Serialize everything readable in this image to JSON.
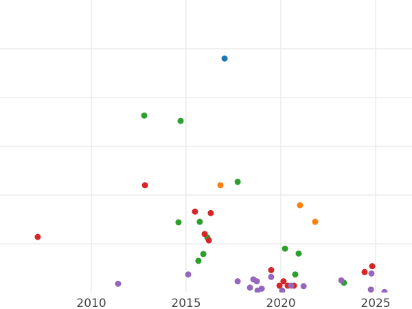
{
  "chart_data": {
    "type": "scatter",
    "title": "",
    "xlabel": "",
    "ylabel": "",
    "xlim": [
      2005.18,
      2026.92
    ],
    "ylim": [
      0,
      6
    ],
    "grid": true,
    "x_ticks": [
      "2010",
      "2015",
      "2020",
      "2025"
    ],
    "x_tick_values": [
      2010,
      2015,
      2020,
      2025
    ],
    "y_gridlines": [
      1,
      2,
      3,
      4,
      5
    ],
    "series": [
      {
        "color": "#1f77b4",
        "points": [
          [
            2017.03,
            4.8
          ]
        ]
      },
      {
        "color": "#2ca02c",
        "points": [
          [
            2012.79,
            3.63
          ],
          [
            2014.71,
            3.52
          ],
          [
            2017.72,
            2.27
          ],
          [
            2014.6,
            1.44
          ],
          [
            2015.72,
            1.45
          ],
          [
            2016.12,
            1.13
          ],
          [
            2015.91,
            0.79
          ],
          [
            2015.65,
            0.65
          ],
          [
            2020.22,
            0.9
          ],
          [
            2020.94,
            0.8
          ],
          [
            2020.76,
            0.37
          ],
          [
            2023.33,
            0.2
          ]
        ]
      },
      {
        "color": "#d62728",
        "points": [
          [
            2007.17,
            1.14
          ],
          [
            2012.83,
            2.2
          ],
          [
            2015.47,
            1.66
          ],
          [
            2016.3,
            1.63
          ],
          [
            2015.98,
            1.2
          ],
          [
            2016.2,
            1.07
          ],
          [
            2019.49,
            0.46
          ],
          [
            2020.14,
            0.23
          ],
          [
            2019.93,
            0.14
          ],
          [
            2020.36,
            0.14
          ],
          [
            2020.69,
            0.14
          ],
          [
            2024.42,
            0.42
          ],
          [
            2024.82,
            0.54
          ]
        ]
      },
      {
        "color": "#ff7f0e",
        "points": [
          [
            2016.81,
            2.2
          ],
          [
            2021.01,
            1.79
          ],
          [
            2021.81,
            1.45
          ]
        ]
      },
      {
        "color": "#9467bd",
        "points": [
          [
            2011.41,
            0.18
          ],
          [
            2015.11,
            0.37
          ],
          [
            2017.72,
            0.23
          ],
          [
            2018.37,
            0.1
          ],
          [
            2018.55,
            0.27
          ],
          [
            2018.73,
            0.23
          ],
          [
            2018.77,
            0.04
          ],
          [
            2018.99,
            0.08
          ],
          [
            2019.49,
            0.32
          ],
          [
            2020.07,
            0.04
          ],
          [
            2020.54,
            0.14
          ],
          [
            2021.2,
            0.13
          ],
          [
            2023.19,
            0.25
          ],
          [
            2024.78,
            0.39
          ],
          [
            2024.75,
            0.06
          ],
          [
            2025.47,
            0.01
          ]
        ]
      }
    ]
  }
}
